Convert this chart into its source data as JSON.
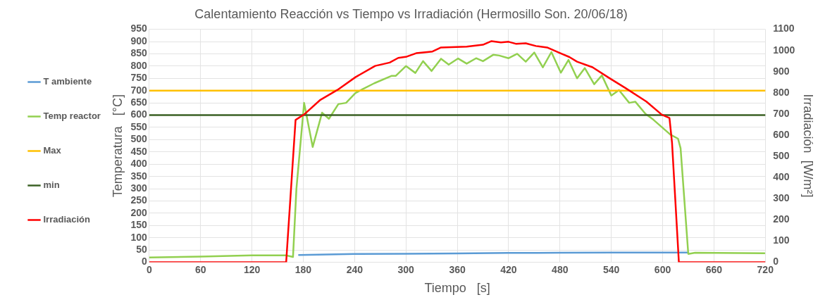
{
  "chart_data": {
    "type": "line",
    "title": "Calentamiento Reacción vs Tiempo vs Irradiación (Hermosillo Son. 20/06/18)",
    "xlabel": "Tiempo   [s]",
    "ylabel": "Temperatura   [°C]",
    "y2label": "Irradiación  [W/m²]",
    "xlim": [
      0,
      720
    ],
    "xticks": [
      0,
      60,
      120,
      180,
      240,
      300,
      360,
      420,
      480,
      540,
      600,
      660,
      720
    ],
    "ylim": [
      0,
      950
    ],
    "yticks": [
      0,
      50,
      100,
      150,
      200,
      250,
      300,
      350,
      400,
      450,
      500,
      550,
      600,
      650,
      700,
      750,
      800,
      850,
      900,
      950
    ],
    "y2lim": [
      0,
      1100
    ],
    "y2ticks": [
      0,
      100,
      200,
      300,
      400,
      500,
      600,
      700,
      800,
      900,
      1000,
      1100
    ],
    "grid": true,
    "legend": "left",
    "marker": "none",
    "line_style": "solid",
    "series": [
      {
        "name": "T ambiente",
        "color": "#5b9bd5",
        "x": [
          175,
          240,
          300,
          360,
          420,
          480,
          540,
          600,
          630
        ],
        "values": [
          30,
          34,
          35,
          36,
          38,
          39,
          40,
          40,
          40
        ]
      },
      {
        "name": "Temp reactor",
        "color": "#92d050",
        "x": [
          0,
          60,
          120,
          150,
          160,
          168,
          172,
          181,
          191,
          202,
          210,
          221,
          230,
          241,
          249,
          263,
          283,
          288,
          300,
          311,
          320,
          330,
          341,
          350,
          361,
          371,
          382,
          390,
          402,
          409,
          420,
          430,
          440,
          450,
          460,
          470,
          481,
          490,
          500,
          509,
          520,
          529,
          540,
          549,
          561,
          568,
          580,
          589,
          609,
          618,
          621,
          630,
          638,
          719
        ],
        "values": [
          20,
          23,
          28,
          28,
          28,
          22,
          300,
          650,
          470,
          610,
          585,
          645,
          650,
          690,
          705,
          730,
          760,
          760,
          800,
          772,
          820,
          780,
          830,
          806,
          831,
          810,
          832,
          820,
          846,
          843,
          832,
          850,
          818,
          855,
          795,
          857,
          773,
          825,
          750,
          792,
          726,
          762,
          680,
          702,
          650,
          655,
          605,
          582,
          521,
          504,
          465,
          34,
          39,
          37
        ]
      },
      {
        "name": "Max",
        "color": "#ffc000",
        "x": [
          0,
          720
        ],
        "values": [
          700,
          700
        ]
      },
      {
        "name": "min",
        "color": "#3b6124",
        "x": [
          0,
          720
        ],
        "values": [
          600,
          600
        ]
      },
      {
        "name": "Irradiación",
        "color": "#ff0000",
        "axis": "y2",
        "x": [
          0,
          150,
          160,
          171,
          181,
          200,
          220,
          241,
          264,
          281,
          291,
          301,
          312,
          331,
          341,
          371,
          390,
          400,
          411,
          420,
          429,
          440,
          452,
          465,
          481,
          491,
          500,
          518,
          538,
          556,
          581,
          599,
          608,
          611,
          619,
          629,
          720
        ],
        "values": [
          0,
          0,
          0,
          672,
          698,
          767,
          814,
          874,
          927,
          943,
          965,
          971,
          987,
          995,
          1014,
          1018,
          1027,
          1044,
          1038,
          1041,
          1031,
          1034,
          1021,
          1014,
          986,
          969,
          947,
          921,
          869,
          824,
          759,
          697,
          681,
          564,
          0,
          0,
          0
        ]
      }
    ]
  }
}
